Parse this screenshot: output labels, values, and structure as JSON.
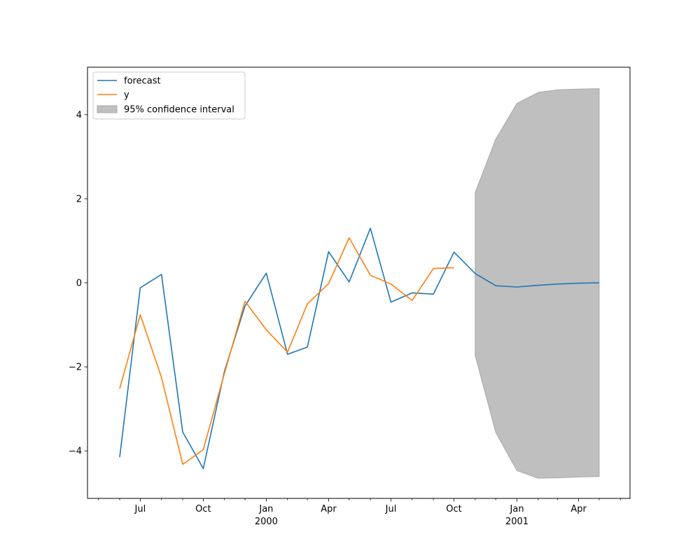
{
  "chart_data": {
    "type": "line",
    "title": "",
    "xlabel": "",
    "ylabel": "",
    "x_range": [
      "1999-04-15",
      "2001-06-15"
    ],
    "ylim": [
      -5.13,
      5.13
    ],
    "grid": false,
    "legend_placement": "top-left",
    "x_ticks": [
      {
        "date": "1999-07-01",
        "label": "Jul",
        "sublabel": ""
      },
      {
        "date": "1999-10-01",
        "label": "Oct",
        "sublabel": ""
      },
      {
        "date": "2000-01-01",
        "label": "Jan",
        "sublabel": "2000"
      },
      {
        "date": "2000-04-01",
        "label": "Apr",
        "sublabel": ""
      },
      {
        "date": "2000-07-01",
        "label": "Jul",
        "sublabel": ""
      },
      {
        "date": "2000-10-01",
        "label": "Oct",
        "sublabel": ""
      },
      {
        "date": "2001-01-01",
        "label": "Jan",
        "sublabel": "2001"
      },
      {
        "date": "2001-04-01",
        "label": "Apr",
        "sublabel": ""
      }
    ],
    "x_minor_ticks": [
      "1999-05-01",
      "1999-06-01",
      "1999-08-01",
      "1999-09-01",
      "1999-11-01",
      "1999-12-01",
      "2000-02-01",
      "2000-03-01",
      "2000-05-01",
      "2000-06-01",
      "2000-08-01",
      "2000-09-01",
      "2000-11-01",
      "2000-12-01",
      "2001-02-01",
      "2001-03-01",
      "2001-05-01",
      "2001-06-01"
    ],
    "y_ticks": [
      {
        "value": -4,
        "label": "−4"
      },
      {
        "value": -2,
        "label": "−2"
      },
      {
        "value": 0,
        "label": "0"
      },
      {
        "value": 2,
        "label": "2"
      },
      {
        "value": 4,
        "label": "4"
      }
    ],
    "series": [
      {
        "name": "forecast",
        "color": "#1f77b4",
        "x": [
          "1999-06-01",
          "1999-07-01",
          "1999-08-01",
          "1999-09-01",
          "1999-10-01",
          "1999-11-01",
          "1999-12-01",
          "2000-01-01",
          "2000-02-01",
          "2000-03-01",
          "2000-04-01",
          "2000-05-01",
          "2000-06-01",
          "2000-07-01",
          "2000-08-01",
          "2000-09-01",
          "2000-10-01",
          "2000-11-01",
          "2000-12-01",
          "2001-01-01",
          "2001-02-01",
          "2001-03-01",
          "2001-04-01",
          "2001-05-01"
        ],
        "values": [
          -4.15,
          -0.12,
          0.2,
          -3.55,
          -4.42,
          -2.1,
          -0.55,
          0.23,
          -1.7,
          -1.53,
          0.74,
          0.02,
          1.3,
          -0.46,
          -0.24,
          -0.27,
          0.73,
          0.22,
          -0.07,
          -0.1,
          -0.06,
          -0.03,
          -0.01,
          0.0
        ]
      },
      {
        "name": "y",
        "color": "#ff7f0e",
        "x": [
          "1999-06-01",
          "1999-07-01",
          "1999-08-01",
          "1999-09-01",
          "1999-10-01",
          "1999-11-01",
          "1999-12-01",
          "2000-01-01",
          "2000-02-01",
          "2000-03-01",
          "2000-04-01",
          "2000-05-01",
          "2000-06-01",
          "2000-07-01",
          "2000-08-01",
          "2000-09-01",
          "2000-10-01"
        ],
        "values": [
          -2.52,
          -0.76,
          -2.25,
          -4.32,
          -3.97,
          -2.15,
          -0.44,
          -1.12,
          -1.65,
          -0.5,
          -0.02,
          1.07,
          0.18,
          -0.03,
          -0.42,
          0.34,
          0.36
        ]
      }
    ],
    "confidence_interval": {
      "name": "95% confidence interval",
      "color": "#bfbfbf",
      "x": [
        "2000-11-01",
        "2000-12-01",
        "2001-01-01",
        "2001-02-01",
        "2001-03-01",
        "2001-04-01",
        "2001-05-01"
      ],
      "upper": [
        2.15,
        3.42,
        4.27,
        4.53,
        4.59,
        4.61,
        4.62
      ],
      "lower": [
        -1.73,
        -3.56,
        -4.47,
        -4.65,
        -4.64,
        -4.62,
        -4.61
      ]
    }
  }
}
